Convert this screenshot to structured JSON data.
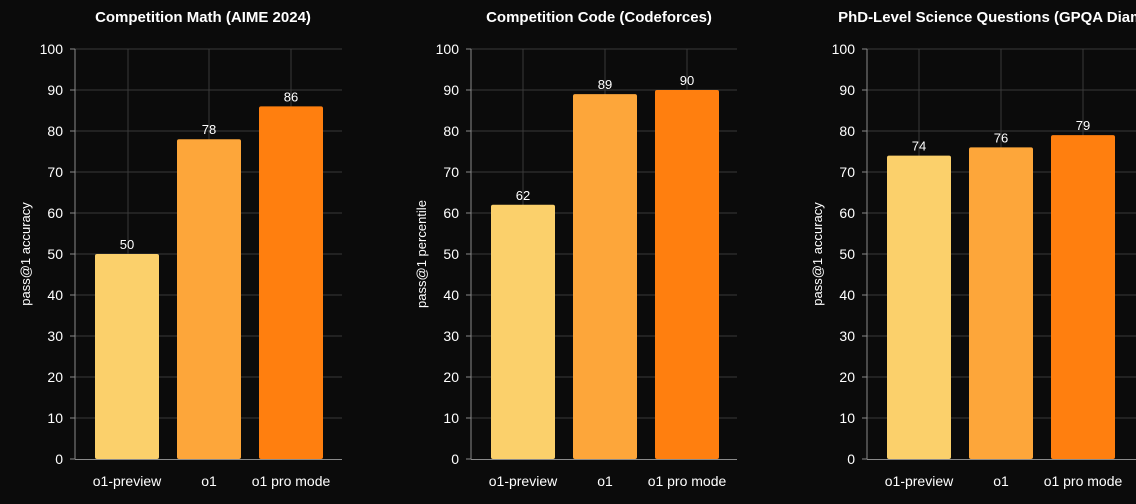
{
  "chart_data": [
    {
      "type": "bar",
      "title": "Competition Math (AIME 2024)",
      "ylabel": "pass@1 accuracy",
      "xlabel": "",
      "categories": [
        "o1-preview",
        "o1",
        "o1 pro mode"
      ],
      "values": [
        50,
        78,
        86
      ],
      "colors": [
        "#fbd06b",
        "#fda63a",
        "#ff7f0f"
      ],
      "ylim": [
        0,
        100
      ],
      "yticks": [
        0,
        10,
        20,
        30,
        40,
        50,
        60,
        70,
        80,
        90,
        100
      ],
      "grid": true
    },
    {
      "type": "bar",
      "title": "Competition Code (Codeforces)",
      "ylabel": "pass@1 percentile",
      "xlabel": "",
      "categories": [
        "o1-preview",
        "o1",
        "o1 pro mode"
      ],
      "values": [
        62,
        89,
        90
      ],
      "colors": [
        "#fbd06b",
        "#fda63a",
        "#ff7f0f"
      ],
      "ylim": [
        0,
        100
      ],
      "yticks": [
        0,
        10,
        20,
        30,
        40,
        50,
        60,
        70,
        80,
        90,
        100
      ],
      "grid": true
    },
    {
      "type": "bar",
      "title": "PhD-Level Science Questions (GPQA Diamond)",
      "ylabel": "pass@1 accuracy",
      "xlabel": "",
      "categories": [
        "o1-preview",
        "o1",
        "o1 pro mode"
      ],
      "values": [
        74,
        76,
        79
      ],
      "colors": [
        "#fbd06b",
        "#fda63a",
        "#ff7f0f"
      ],
      "ylim": [
        0,
        100
      ],
      "yticks": [
        0,
        10,
        20,
        30,
        40,
        50,
        60,
        70,
        80,
        90,
        100
      ],
      "grid": true
    }
  ],
  "colors": {
    "background": "#0b0b0b",
    "grid": "#3a3a3a",
    "axis": "#8a8a8a",
    "text": "#ffffff"
  }
}
